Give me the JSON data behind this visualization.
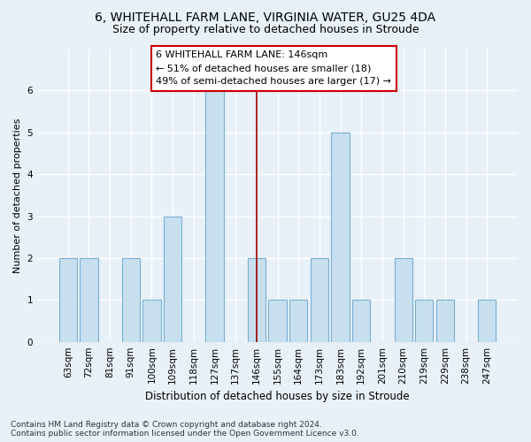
{
  "title1": "6, WHITEHALL FARM LANE, VIRGINIA WATER, GU25 4DA",
  "title2": "Size of property relative to detached houses in Stroude",
  "xlabel": "Distribution of detached houses by size in Stroude",
  "ylabel": "Number of detached properties",
  "categories": [
    "63sqm",
    "72sqm",
    "81sqm",
    "91sqm",
    "100sqm",
    "109sqm",
    "118sqm",
    "127sqm",
    "137sqm",
    "146sqm",
    "155sqm",
    "164sqm",
    "173sqm",
    "183sqm",
    "192sqm",
    "201sqm",
    "210sqm",
    "219sqm",
    "229sqm",
    "238sqm",
    "247sqm"
  ],
  "values": [
    2,
    2,
    0,
    2,
    1,
    3,
    0,
    6,
    0,
    2,
    1,
    1,
    2,
    5,
    1,
    0,
    2,
    1,
    1,
    0,
    1
  ],
  "bar_color": "#c8dff0",
  "bar_edge_color": "#7aafd4",
  "highlight_index": 9,
  "highlight_line_color": "#990000",
  "annotation_text": "6 WHITEHALL FARM LANE: 146sqm\n← 51% of detached houses are smaller (18)\n49% of semi-detached houses are larger (17) →",
  "annotation_box_color": "#ffffff",
  "annotation_box_edge_color": "#cc0000",
  "ylim": [
    0,
    7
  ],
  "yticks": [
    0,
    1,
    2,
    3,
    4,
    5,
    6
  ],
  "background_color": "#e8f0f8",
  "grid_color": "#ffffff",
  "footnote": "Contains HM Land Registry data © Crown copyright and database right 2024.\nContains public sector information licensed under the Open Government Licence v3.0.",
  "title1_fontsize": 10,
  "title2_fontsize": 9,
  "xlabel_fontsize": 8.5,
  "ylabel_fontsize": 8,
  "tick_fontsize": 7.5,
  "annotation_fontsize": 8,
  "footnote_fontsize": 6.5
}
